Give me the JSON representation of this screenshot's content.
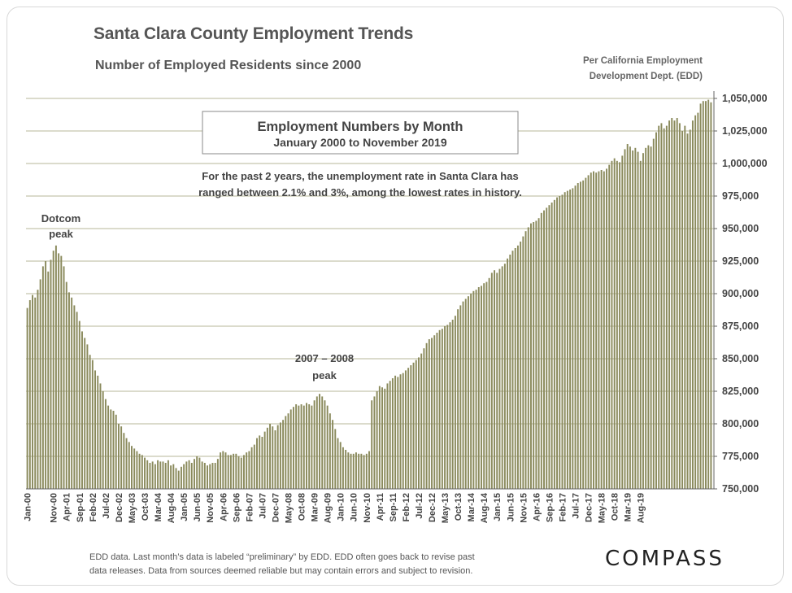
{
  "header": {
    "title": "Santa Clara County Employment Trends",
    "subtitle": "Number of Employed Residents since 2000",
    "source_line1": "Per California Employment",
    "source_line2": "Development Dept. (EDD)"
  },
  "footer": {
    "line1": "EDD data. Last month’s data is labeled “preliminary” by EDD. EDD often goes back to revise past",
    "line2": "data releases. Data from sources deemed reliable but may contain errors and subject to revision.",
    "brand": "COMPASS"
  },
  "colors": {
    "bar": "#8a8a5c",
    "grid": "#b7b79a",
    "text": "#555555",
    "axis": "#666666"
  },
  "chart_data": {
    "type": "bar",
    "x_start": "Jan-00",
    "x_end": "Nov-19",
    "x_tick_labels": [
      "Jan-00",
      "Nov-00",
      "Apr-01",
      "Sep-01",
      "Feb-02",
      "Jul-02",
      "Dec-02",
      "May-03",
      "Oct-03",
      "Mar-04",
      "Aug-04",
      "Jan-05",
      "Jun-05",
      "Nov-05",
      "Apr-06",
      "Sep-06",
      "Feb-07",
      "Jul-07",
      "Dec-07",
      "May-08",
      "Oct-08",
      "Mar-09",
      "Aug-09",
      "Jan-10",
      "Jun-10",
      "Nov-10",
      "Apr-11",
      "Sep-11",
      "Feb-12",
      "Jul-12",
      "Dec-12",
      "May-13",
      "Oct-13",
      "Mar-14",
      "Aug-14",
      "Jan-15",
      "Jun-15",
      "Nov-15",
      "Apr-16",
      "Sep-16",
      "Feb-17",
      "Jul-17",
      "Dec-17",
      "May-18",
      "Oct-18",
      "Mar-19",
      "Aug-19"
    ],
    "ylim": [
      750000,
      1050000
    ],
    "y_tick_labels": [
      "1,050,000",
      "1,025,000",
      "1,000,000",
      "975,000",
      "950,000",
      "925,000",
      "900,000",
      "875,000",
      "850,000",
      "825,000",
      "800,000",
      "775,000",
      "750,000"
    ],
    "grid": true,
    "box": {
      "title": "Employment Numbers by Month",
      "subtitle": "January 2000 to November 2019"
    },
    "note_line1": "For the past 2 years, the unemployment rate in Santa Clara has",
    "note_line2": "ranged between 2.1% and 3%, among the lowest rates in history.",
    "annotations": [
      {
        "line1": "Dotcom",
        "line2": "peak"
      },
      {
        "line1": "2007 – 2008",
        "line2": "peak"
      }
    ],
    "values": [
      889000,
      895000,
      899000,
      897000,
      903000,
      911000,
      921000,
      925000,
      917000,
      926000,
      933000,
      937000,
      931000,
      929000,
      921000,
      909000,
      901000,
      897000,
      891000,
      886000,
      879000,
      871000,
      866000,
      861000,
      853000,
      849000,
      841000,
      837000,
      831000,
      825000,
      819000,
      814000,
      811000,
      810000,
      807000,
      800000,
      798000,
      793000,
      789000,
      786000,
      783000,
      781000,
      779000,
      777000,
      776000,
      774000,
      772000,
      770000,
      771000,
      769000,
      772000,
      771000,
      771000,
      770000,
      772000,
      768000,
      769000,
      766000,
      764000,
      767000,
      769000,
      771000,
      772000,
      770000,
      773000,
      775000,
      774000,
      771000,
      770000,
      768000,
      769000,
      770000,
      770000,
      773000,
      778000,
      779000,
      778000,
      776000,
      776000,
      777000,
      777000,
      775000,
      774000,
      776000,
      778000,
      779000,
      782000,
      784000,
      789000,
      791000,
      790000,
      794000,
      797000,
      800000,
      798000,
      795000,
      799000,
      801000,
      803000,
      806000,
      808000,
      811000,
      813000,
      815000,
      814000,
      815000,
      814000,
      816000,
      815000,
      814000,
      818000,
      821000,
      823000,
      821000,
      818000,
      814000,
      808000,
      803000,
      796000,
      789000,
      786000,
      782000,
      780000,
      778000,
      777000,
      777000,
      778000,
      777000,
      777000,
      776000,
      777000,
      779000,
      818000,
      821000,
      825000,
      829000,
      828000,
      827000,
      831000,
      833000,
      835000,
      837000,
      836000,
      838000,
      839000,
      841000,
      843000,
      845000,
      847000,
      849000,
      851000,
      854000,
      858000,
      862000,
      865000,
      866000,
      868000,
      870000,
      872000,
      873000,
      875000,
      876000,
      878000,
      880000,
      883000,
      888000,
      891000,
      894000,
      896000,
      898000,
      900000,
      902000,
      903000,
      905000,
      906000,
      908000,
      909000,
      912000,
      916000,
      918000,
      916000,
      919000,
      921000,
      923000,
      927000,
      930000,
      933000,
      935000,
      937000,
      940000,
      944000,
      948000,
      951000,
      954000,
      955000,
      956000,
      958000,
      962000,
      964000,
      966000,
      968000,
      970000,
      972000,
      974000,
      975000,
      976000,
      978000,
      979000,
      980000,
      981000,
      983000,
      985000,
      986000,
      987000,
      989000,
      991000,
      993000,
      994000,
      993000,
      994000,
      995000,
      994000,
      996000,
      999000,
      1002000,
      1004000,
      1002000,
      1001000,
      1006000,
      1011000,
      1015000,
      1013000,
      1010000,
      1012000,
      1009000,
      1002000,
      1008000,
      1012000,
      1014000,
      1013000,
      1019000,
      1024000,
      1029000,
      1031000,
      1027000,
      1029000,
      1033000,
      1035000,
      1033000,
      1035000,
      1031000,
      1025000,
      1029000,
      1023000,
      1026000,
      1033000,
      1037000,
      1039000,
      1046000,
      1048000,
      1048000,
      1049000,
      1047000
    ]
  }
}
